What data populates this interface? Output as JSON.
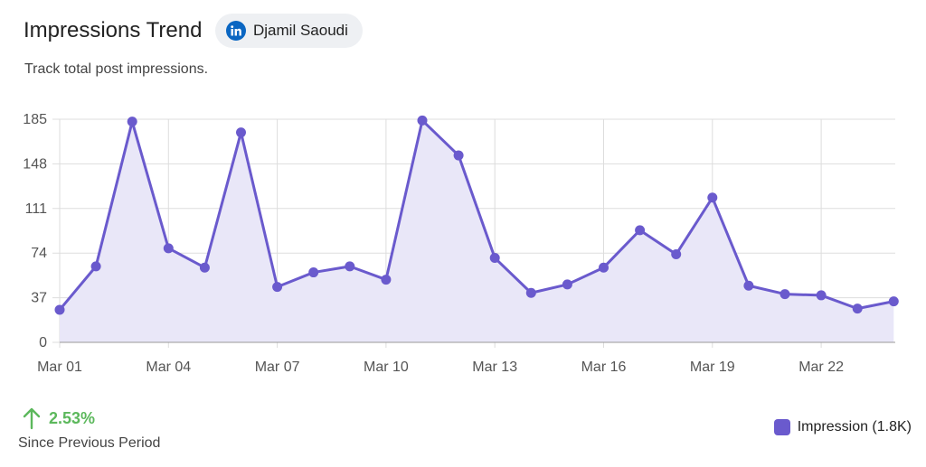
{
  "header": {
    "title": "Impressions Trend",
    "subtitle": "Track total post impressions.",
    "account_chip": {
      "name": "Djamil Saoudi",
      "icon": "linkedin-icon"
    }
  },
  "footer": {
    "change_value": "2.53%",
    "change_direction": "up",
    "change_color": "#5cb85c",
    "since_label": "Since Previous Period",
    "legend_label": "Impression (1.8K)"
  },
  "colors": {
    "series": "#6a5acd",
    "fill": "#e9e7f8",
    "grid": "#dddddd",
    "axis": "#555555"
  },
  "chart_data": {
    "type": "area",
    "x": [
      "Mar 01",
      "Mar 02",
      "Mar 03",
      "Mar 04",
      "Mar 05",
      "Mar 06",
      "Mar 07",
      "Mar 08",
      "Mar 09",
      "Mar 10",
      "Mar 11",
      "Mar 12",
      "Mar 13",
      "Mar 14",
      "Mar 15",
      "Mar 16",
      "Mar 17",
      "Mar 18",
      "Mar 19",
      "Mar 20",
      "Mar 21",
      "Mar 22",
      "Mar 23",
      "Mar 24"
    ],
    "x_tick_labels": [
      "Mar 01",
      "Mar 04",
      "Mar 07",
      "Mar 10",
      "Mar 13",
      "Mar 16",
      "Mar 19",
      "Mar 22"
    ],
    "series": [
      {
        "name": "Impression (1.8K)",
        "values": [
          27,
          63,
          183,
          78,
          62,
          174,
          46,
          58,
          63,
          52,
          184,
          155,
          70,
          41,
          48,
          62,
          93,
          73,
          120,
          47,
          40,
          39,
          28,
          34
        ]
      }
    ],
    "ylim": [
      0,
      185
    ],
    "y_ticks": [
      0,
      37,
      74,
      111,
      148,
      185
    ],
    "grid": true,
    "legend_position": "bottom-right"
  }
}
